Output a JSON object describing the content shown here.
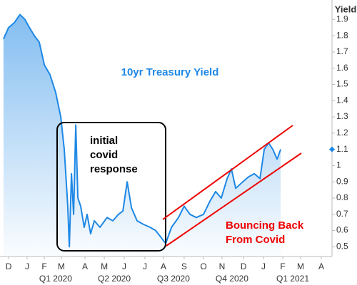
{
  "chart_data": {
    "type": "area-line",
    "y_axis_label": "Yield",
    "series_label": "10yr Treasury Yield",
    "annotations": [
      "initial",
      "covid",
      "response"
    ],
    "annotations_2": [
      "Bouncing Back",
      "From Covid"
    ],
    "color": "#1e88e5",
    "x": [
      0.18,
      0.44,
      0.73,
      1.02,
      1.28,
      1.46,
      1.76,
      2.01,
      2.27,
      2.56,
      2.85,
      3.11,
      3.29,
      3.47,
      3.55,
      3.66,
      3.77,
      3.88,
      3.99,
      4.13,
      4.31,
      4.46,
      4.64,
      4.83,
      5.12,
      5.48,
      5.78,
      6.07,
      6.29,
      6.51,
      6.73,
      7.02,
      7.31,
      7.68,
      7.97,
      8.23,
      8.48,
      8.78,
      9.14,
      9.43,
      9.73,
      10.05,
      10.42,
      10.75,
      11.04,
      11.33,
      11.63,
      11.85,
      12.07,
      12.43,
      12.72,
      13.02,
      13.31,
      13.53,
      13.75,
      13.97,
      14.19,
      14.37
    ],
    "values": [
      1.78,
      1.85,
      1.88,
      1.93,
      1.9,
      1.86,
      1.8,
      1.76,
      1.62,
      1.56,
      1.45,
      1.3,
      1.1,
      0.75,
      0.5,
      0.95,
      0.7,
      1.25,
      0.8,
      0.75,
      0.62,
      0.7,
      0.58,
      0.66,
      0.62,
      0.68,
      0.66,
      0.7,
      0.72,
      0.9,
      0.74,
      0.66,
      0.64,
      0.62,
      0.6,
      0.56,
      0.52,
      0.62,
      0.68,
      0.75,
      0.7,
      0.68,
      0.7,
      0.78,
      0.84,
      0.8,
      0.92,
      0.98,
      0.86,
      0.9,
      0.93,
      0.95,
      0.92,
      1.1,
      1.14,
      1.1,
      1.04,
      1.1
    ],
    "xlim": [
      0,
      17
    ],
    "xticks": [
      {
        "value": 0.44,
        "label": "D"
      },
      {
        "value": 1.39,
        "label": "J"
      },
      {
        "value": 2.27,
        "label": "F"
      },
      {
        "value": 3.14,
        "label": "M"
      },
      {
        "value": 4.35,
        "label": "A"
      },
      {
        "value": 5.34,
        "label": "M"
      },
      {
        "value": 6.36,
        "label": "J"
      },
      {
        "value": 7.42,
        "label": "J"
      },
      {
        "value": 8.37,
        "label": "A"
      },
      {
        "value": 9.43,
        "label": "S"
      },
      {
        "value": 10.42,
        "label": "O"
      },
      {
        "value": 11.37,
        "label": "N"
      },
      {
        "value": 12.47,
        "label": "D"
      },
      {
        "value": 13.49,
        "label": "J"
      },
      {
        "value": 14.48,
        "label": "F"
      },
      {
        "value": 15.39,
        "label": "M"
      },
      {
        "value": 16.45,
        "label": "A"
      }
    ],
    "quarter_ticks": [
      {
        "value": 2.85,
        "label": "Q1 2020"
      },
      {
        "value": 5.85,
        "label": "Q2 2020"
      },
      {
        "value": 8.88,
        "label": "Q3 2020"
      },
      {
        "value": 11.88,
        "label": "Q4 2020"
      },
      {
        "value": 14.99,
        "label": "Q1 2021"
      }
    ],
    "ylim": [
      0.44,
      2.02
    ],
    "yticks": [
      0.5,
      0.6,
      0.7,
      0.8,
      0.9,
      1,
      1.1,
      1.2,
      1.3,
      1.4,
      1.5,
      1.6,
      1.7,
      1.8,
      1.9
    ]
  }
}
